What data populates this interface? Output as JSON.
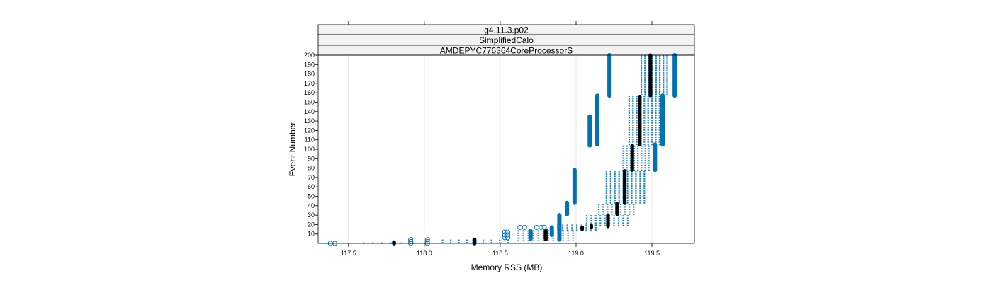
{
  "chart_data": {
    "type": "scatter",
    "panel_strips": [
      "g4.11.3.p02",
      "SimplifiedCalo",
      "AMDEPYC776364CoreProcessorS"
    ],
    "xlabel": "Memory RSS (MB)",
    "ylabel": "Event Number",
    "xlim": [
      117.3,
      119.78
    ],
    "ylim": [
      0,
      200
    ],
    "x_ticks": [
      117.5,
      118.0,
      118.5,
      119.0,
      119.5
    ],
    "x_tick_labels": [
      "117.5",
      "118.0",
      "118.5",
      "119.0",
      "119.5"
    ],
    "y_ticks": [
      10,
      20,
      30,
      40,
      50,
      60,
      70,
      80,
      90,
      100,
      110,
      120,
      130,
      140,
      150,
      160,
      170,
      180,
      190,
      200
    ],
    "grid": "vertical",
    "colors": {
      "points": "#0072b2",
      "median": "#000000",
      "strip_bg": "#f2f2f2",
      "frame": "#000000",
      "grid": "#e6e6e6"
    },
    "series": [
      {
        "style": "solid-run",
        "segments": [
          {
            "x": 117.8,
            "y0": 0,
            "y1": 1
          },
          {
            "x": 118.33,
            "y0": 0,
            "y1": 4
          },
          {
            "x": 118.7,
            "y0": 5,
            "y1": 13
          },
          {
            "x": 118.8,
            "y0": 5,
            "y1": 14
          },
          {
            "x": 118.84,
            "y0": 9,
            "y1": 17
          },
          {
            "x": 118.89,
            "y0": 4,
            "y1": 12
          },
          {
            "x": 118.89,
            "y0": 14,
            "y1": 30
          },
          {
            "x": 118.94,
            "y0": 31,
            "y1": 43
          },
          {
            "x": 118.99,
            "y0": 43,
            "y1": 78
          },
          {
            "x": 119.09,
            "y0": 104,
            "y1": 135
          },
          {
            "x": 119.14,
            "y0": 105,
            "y1": 157
          },
          {
            "x": 119.22,
            "y0": 157,
            "y1": 200
          },
          {
            "x": 119.52,
            "y0": 78,
            "y1": 105
          },
          {
            "x": 119.57,
            "y0": 105,
            "y1": 157
          },
          {
            "x": 119.65,
            "y0": 157,
            "y1": 200
          }
        ]
      },
      {
        "style": "dashed-band",
        "segments": [
          {
            "x0": 117.6,
            "x1": 117.78,
            "y0": 0,
            "y1": 1,
            "n": 4
          },
          {
            "x0": 117.85,
            "x1": 118.0,
            "y0": 0,
            "y1": 1,
            "n": 3
          },
          {
            "x0": 118.12,
            "x1": 118.55,
            "y0": 0,
            "y1": 4,
            "n": 9
          },
          {
            "x0": 118.62,
            "x1": 118.98,
            "y0": 4,
            "y1": 14,
            "n": 12
          },
          {
            "x0": 118.88,
            "x1": 119.13,
            "y0": 13,
            "y1": 20,
            "n": 9
          },
          {
            "x0": 119.07,
            "x1": 119.34,
            "y0": 18,
            "y1": 30,
            "n": 10
          },
          {
            "x0": 119.15,
            "x1": 119.38,
            "y0": 30,
            "y1": 42,
            "n": 9
          },
          {
            "x0": 119.2,
            "x1": 119.45,
            "y0": 42,
            "y1": 77,
            "n": 10
          },
          {
            "x0": 119.31,
            "x1": 119.48,
            "y0": 78,
            "y1": 104,
            "n": 8
          },
          {
            "x0": 119.35,
            "x1": 119.55,
            "y0": 104,
            "y1": 157,
            "n": 9
          },
          {
            "x0": 119.43,
            "x1": 119.6,
            "y0": 157,
            "y1": 200,
            "n": 8
          }
        ]
      },
      {
        "style": "open-point",
        "points": [
          {
            "x": 117.38,
            "y": 0
          },
          {
            "x": 117.41,
            "y": 0
          },
          {
            "x": 117.91,
            "y": 0
          },
          {
            "x": 117.91,
            "y": 2
          },
          {
            "x": 117.91,
            "y": 4
          },
          {
            "x": 118.02,
            "y": 0
          },
          {
            "x": 118.02,
            "y": 2
          },
          {
            "x": 118.02,
            "y": 4
          },
          {
            "x": 118.53,
            "y": 6
          },
          {
            "x": 118.53,
            "y": 9
          },
          {
            "x": 118.53,
            "y": 12
          },
          {
            "x": 118.55,
            "y": 6
          },
          {
            "x": 118.55,
            "y": 9
          },
          {
            "x": 118.55,
            "y": 12
          },
          {
            "x": 118.63,
            "y": 17
          },
          {
            "x": 118.66,
            "y": 17
          },
          {
            "x": 118.74,
            "y": 17
          },
          {
            "x": 118.77,
            "y": 17
          },
          {
            "x": 118.79,
            "y": 17
          }
        ]
      },
      {
        "style": "median",
        "segments": [
          {
            "x": 117.8,
            "y0": 0,
            "y1": 0.5
          },
          {
            "x": 118.33,
            "y0": 0,
            "y1": 4
          },
          {
            "x": 118.8,
            "y0": 4,
            "y1": 13
          },
          {
            "x": 119.04,
            "y0": 15,
            "y1": 17
          },
          {
            "x": 119.1,
            "y0": 17,
            "y1": 19
          },
          {
            "x": 119.21,
            "y0": 18,
            "y1": 30
          },
          {
            "x": 119.27,
            "y0": 31,
            "y1": 42
          },
          {
            "x": 119.32,
            "y0": 43,
            "y1": 77
          },
          {
            "x": 119.37,
            "y0": 78,
            "y1": 104
          },
          {
            "x": 119.42,
            "y0": 105,
            "y1": 156
          },
          {
            "x": 119.49,
            "y0": 157,
            "y1": 200
          }
        ]
      }
    ]
  }
}
